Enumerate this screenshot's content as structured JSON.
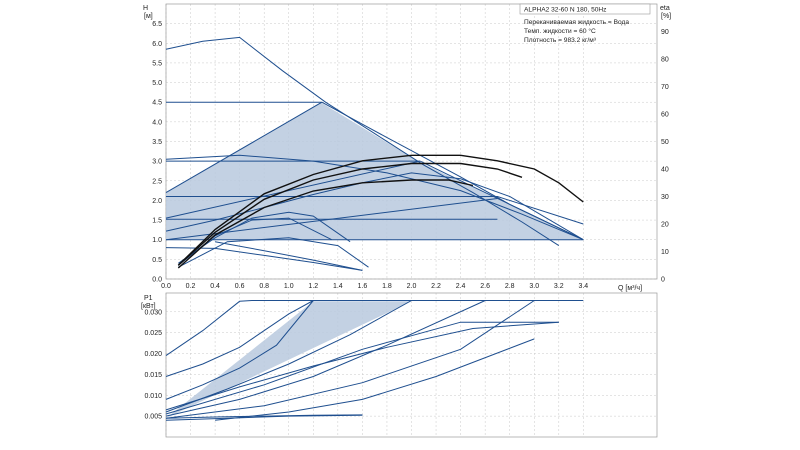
{
  "colors": {
    "curve": "#1f4f8f",
    "fill": "#b9c9de",
    "efficiency": "#111111",
    "grid": "#c9c9c9",
    "frame": "#9a9a9a"
  },
  "info_box": {
    "title": "ALPHA2 32-60 N 180, 50Hz",
    "lines": [
      "Перекачиваемая жидкость = Вода",
      "Темп. жидкости = 60 °C",
      "Плотность = 983.2 кг/м³"
    ]
  },
  "chart_data": [
    {
      "type": "line",
      "ylabel_top": "H",
      "ylabel_bottom": "[м]",
      "y2label_top": "eta",
      "y2label_bottom": "[%]",
      "xlabel": "Q [м³/ч]",
      "xlim": [
        0,
        4.0
      ],
      "ylim": [
        0,
        7.0
      ],
      "y2lim": [
        0,
        100
      ],
      "x_ticks": [
        "0.0",
        "0.2",
        "0.4",
        "0.6",
        "0.8",
        "1.0",
        "1.2",
        "1.4",
        "1.6",
        "1.8",
        "2.0",
        "2.2",
        "2.4",
        "2.6",
        "2.8",
        "3.0",
        "3.2",
        "3.4"
      ],
      "y_ticks": [
        "0.0",
        "0.5",
        "1.0",
        "1.5",
        "2.0",
        "2.5",
        "3.0",
        "3.5",
        "4.0",
        "4.5",
        "5.0",
        "5.5",
        "6.0",
        "6.5"
      ],
      "y2_ticks": [
        "0",
        "10",
        "20",
        "30",
        "40",
        "50",
        "60",
        "70",
        "80",
        "90"
      ],
      "grid": true,
      "shaded_region": {
        "x": [
          0,
          0,
          1.26,
          2.05,
          3.4,
          1.1
        ],
        "y": [
          1.0,
          2.2,
          4.5,
          3.0,
          1.0,
          1.0
        ]
      },
      "series": [
        {
          "x": [
            0,
            0.3,
            0.6,
            0.95,
            1.3,
            1.7,
            2.1,
            2.5,
            2.9,
            3.2
          ],
          "y": [
            5.85,
            6.05,
            6.15,
            5.3,
            4.5,
            3.7,
            2.9,
            2.2,
            1.45,
            0.85
          ]
        },
        {
          "x": [
            0,
            1.27
          ],
          "y": [
            4.5,
            4.5
          ]
        },
        {
          "x": [
            0,
            1.27
          ],
          "y": [
            2.2,
            4.5
          ]
        },
        {
          "x": [
            1.27,
            1.8,
            2.4,
            2.8,
            3.4
          ],
          "y": [
            4.5,
            3.6,
            2.6,
            1.9,
            1.0
          ]
        },
        {
          "x": [
            0,
            2.07
          ],
          "y": [
            3.0,
            3.0
          ]
        },
        {
          "x": [
            0,
            2.07
          ],
          "y": [
            1.55,
            3.0
          ]
        },
        {
          "x": [
            2.07,
            2.5,
            3.0,
            3.4
          ],
          "y": [
            3.0,
            2.35,
            1.6,
            1.0
          ]
        },
        {
          "x": [
            0,
            0.6,
            1.2,
            1.8,
            2.4,
            2.9,
            3.4
          ],
          "y": [
            3.05,
            3.15,
            3.0,
            2.7,
            2.25,
            1.65,
            1.0
          ]
        },
        {
          "x": [
            0,
            2.7
          ],
          "y": [
            1.52,
            1.52
          ]
        },
        {
          "x": [
            0,
            2.7
          ],
          "y": [
            1.0,
            2.05
          ]
        },
        {
          "x": [
            0,
            3.4
          ],
          "y": [
            1.0,
            1.0
          ]
        },
        {
          "x": [
            0,
            0.4,
            0.8,
            1.2,
            1.6,
            2.0,
            2.4,
            2.8,
            3.4
          ],
          "y": [
            1.22,
            1.5,
            1.82,
            2.15,
            2.45,
            2.7,
            2.55,
            2.1,
            1.0
          ]
        },
        {
          "x": [
            0,
            2.7,
            3.4
          ],
          "y": [
            2.1,
            2.1,
            1.4
          ]
        },
        {
          "x": [
            0,
            0.4,
            0.8,
            1.2,
            1.6
          ],
          "y": [
            0.8,
            0.78,
            0.6,
            0.42,
            0.22
          ]
        },
        {
          "x": [
            0.4,
            0.8,
            1.2,
            1.6
          ],
          "y": [
            0.95,
            0.72,
            0.48,
            0.22
          ]
        },
        {
          "x": [
            0.1,
            0.5,
            1.0,
            1.4,
            1.65
          ],
          "y": [
            0.3,
            0.95,
            1.05,
            0.85,
            0.3
          ]
        },
        {
          "x": [
            0.1,
            0.4,
            0.7,
            1.0,
            1.35
          ],
          "y": [
            0.35,
            1.1,
            1.5,
            1.55,
            1.0
          ]
        },
        {
          "x": [
            0.1,
            0.4,
            0.7,
            1.0,
            1.2,
            1.5
          ],
          "y": [
            0.4,
            1.05,
            1.55,
            1.7,
            1.6,
            0.95
          ]
        }
      ],
      "efficiency_series": [
        {
          "x": [
            0.1,
            0.4,
            0.8,
            1.2,
            1.6,
            2.0,
            2.4,
            2.7,
            3.0,
            3.2,
            3.4
          ],
          "y": [
            5,
            18,
            31,
            38,
            43,
            45,
            45,
            43,
            40,
            35,
            28
          ]
        },
        {
          "x": [
            0.1,
            0.4,
            0.8,
            1.2,
            1.6,
            2.0,
            2.4,
            2.7,
            2.9
          ],
          "y": [
            5,
            17,
            29,
            36,
            40,
            42,
            42,
            40,
            37
          ]
        },
        {
          "x": [
            0.1,
            0.4,
            0.8,
            1.2,
            1.6,
            2.0,
            2.3,
            2.5
          ],
          "y": [
            4,
            16,
            26,
            32,
            35,
            36,
            36,
            34
          ]
        }
      ]
    },
    {
      "type": "line",
      "ylabel_top": "P1",
      "ylabel_bottom": "[кВт]",
      "xlim": [
        0,
        4.0
      ],
      "ylim": [
        0,
        0.0345
      ],
      "y_ticks": [
        "0.005",
        "0.010",
        "0.015",
        "0.020",
        "0.025",
        "0.030"
      ],
      "grid": true,
      "shaded_region": {
        "x": [
          0,
          1.2,
          3.4,
          2.0,
          0
        ],
        "y": [
          0.0045,
          0.0325,
          0.0325,
          0.0325,
          0.0045
        ]
      },
      "series": [
        {
          "x": [
            0,
            0.3,
            0.6,
            0.7,
            3.4
          ],
          "y": [
            0.0195,
            0.0255,
            0.0325,
            0.0327,
            0.0327
          ]
        },
        {
          "x": [
            0,
            0.3,
            0.6,
            0.8,
            1.0,
            1.2
          ],
          "y": [
            0.0145,
            0.0175,
            0.0215,
            0.0255,
            0.0295,
            0.0327
          ]
        },
        {
          "x": [
            0,
            0.3,
            0.6,
            0.9,
            1.2
          ],
          "y": [
            0.009,
            0.0125,
            0.0165,
            0.022,
            0.0327
          ]
        },
        {
          "x": [
            0,
            0.5,
            1.0,
            1.5,
            2.0
          ],
          "y": [
            0.006,
            0.0115,
            0.0175,
            0.0245,
            0.0327
          ]
        },
        {
          "x": [
            0,
            0.6,
            1.2,
            1.8,
            2.6
          ],
          "y": [
            0.005,
            0.009,
            0.0145,
            0.022,
            0.0327
          ]
        },
        {
          "x": [
            0,
            0.8,
            1.6,
            2.4,
            3.0
          ],
          "y": [
            0.0045,
            0.0075,
            0.013,
            0.021,
            0.0327
          ]
        },
        {
          "x": [
            0.4,
            1.0,
            1.6,
            2.2,
            3.0
          ],
          "y": [
            0.004,
            0.006,
            0.009,
            0.0145,
            0.0235
          ]
        },
        {
          "x": [
            0,
            0.8,
            1.6,
            2.4,
            3.2
          ],
          "y": [
            0.0055,
            0.0125,
            0.021,
            0.0275,
            0.0275
          ]
        },
        {
          "x": [
            0,
            0.6,
            1.2,
            1.8,
            2.5,
            3.2
          ],
          "y": [
            0.0065,
            0.012,
            0.017,
            0.0215,
            0.026,
            0.0275
          ]
        },
        {
          "x": [
            0,
            0.4,
            0.8,
            1.2,
            1.6
          ],
          "y": [
            0.0045,
            0.0048,
            0.005,
            0.0052,
            0.0053
          ]
        },
        {
          "x": [
            0,
            0.5,
            1.0,
            1.6
          ],
          "y": [
            0.004,
            0.0045,
            0.005,
            0.0052
          ]
        }
      ]
    }
  ]
}
